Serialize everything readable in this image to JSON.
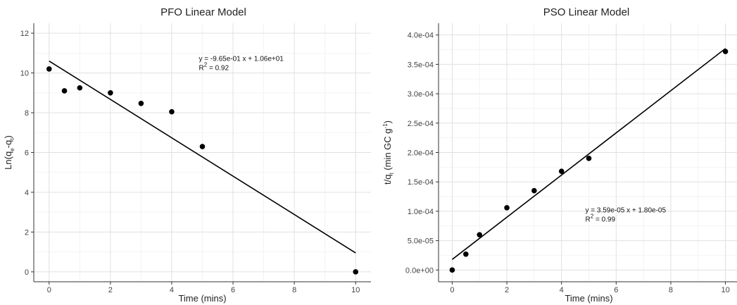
{
  "chart_data": [
    {
      "type": "scatter",
      "title": "PFO Linear Model",
      "xlabel": "Time (mins)",
      "ylabel": "Ln(q_e-q_t)",
      "xlim": [
        -0.5,
        10.5
      ],
      "ylim": [
        -0.5,
        12.5
      ],
      "xticks": [
        0,
        2,
        4,
        6,
        8,
        10
      ],
      "yticks": [
        0,
        2,
        4,
        6,
        8,
        10,
        12
      ],
      "xticklabels": [
        "0",
        "2",
        "4",
        "6",
        "8",
        "10"
      ],
      "yticklabels": [
        "0",
        "2",
        "4",
        "6",
        "8",
        "10",
        "12"
      ],
      "grid": true,
      "series": [
        {
          "x": [
            0,
            0.5,
            1,
            2,
            3,
            4,
            5,
            10
          ],
          "y": [
            10.2,
            9.1,
            9.25,
            9.0,
            8.47,
            8.05,
            6.3,
            0.0
          ]
        }
      ],
      "fit": {
        "slope": -0.965,
        "intercept": 10.6,
        "x_range": [
          0,
          10
        ]
      },
      "annotation": {
        "equation": "y = -9.65e-01 x + 1.06e+01",
        "r2": "R^2 = 0.92",
        "anchor_x": 5,
        "anchor_y": 10.6
      }
    },
    {
      "type": "scatter",
      "title": "PSO Linear Model",
      "xlabel": "Time (mins)",
      "ylabel": "t/q_t (min GC g^-1)",
      "xlim": [
        -0.5,
        10.5
      ],
      "ylim": [
        -2e-05,
        0.00042
      ],
      "xticks": [
        0,
        2,
        4,
        6,
        8,
        10
      ],
      "yticks": [
        0,
        5e-05,
        0.0001,
        0.00015,
        0.0002,
        0.00025,
        0.0003,
        0.00035,
        0.0004
      ],
      "xticklabels": [
        "0",
        "2",
        "4",
        "6",
        "8",
        "10"
      ],
      "yticklabels": [
        "0.0e+00",
        "5.0e-05",
        "1.0e-04",
        "1.5e-04",
        "2.0e-04",
        "2.5e-04",
        "3.0e-04",
        "3.5e-04",
        "4.0e-04"
      ],
      "grid": true,
      "series": [
        {
          "x": [
            0,
            0.5,
            1,
            2,
            3,
            4,
            5,
            10
          ],
          "y": [
            0.0,
            2.7e-05,
            6e-05,
            0.000106,
            0.000135,
            0.000168,
            0.00019,
            0.000372
          ]
        }
      ],
      "fit": {
        "slope": 3.59e-05,
        "intercept": 1.8e-05,
        "x_range": [
          0,
          10
        ]
      },
      "annotation": {
        "equation": "y = 3.59e-05 x + 1.80e-05",
        "r2": "R^2 = 0.99",
        "anchor_x": 5,
        "anchor_y": 9.8e-05
      }
    }
  ]
}
